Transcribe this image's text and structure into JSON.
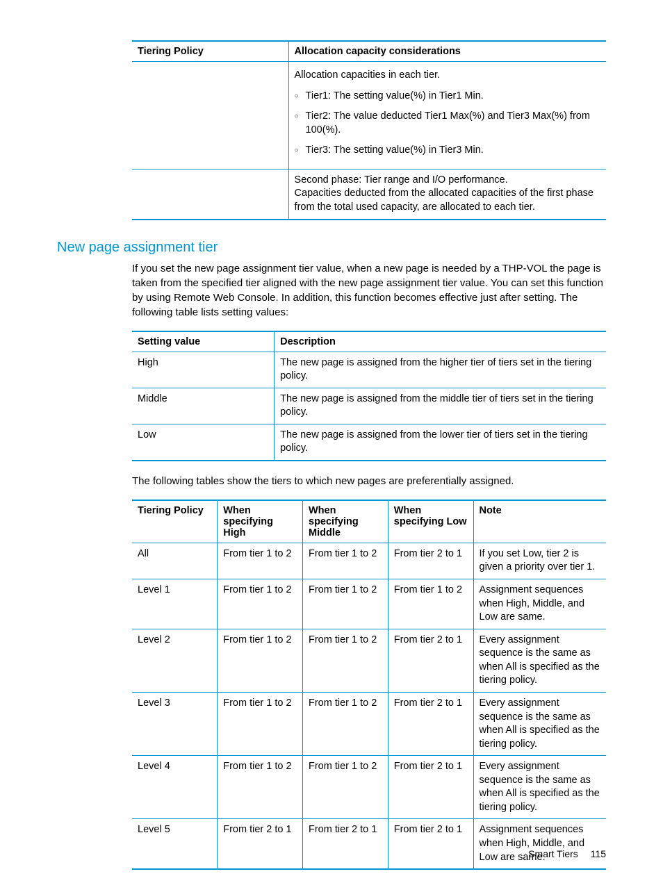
{
  "colors": {
    "accent": "#0096d6",
    "text": "#000000",
    "background": "#ffffff"
  },
  "typography": {
    "body_fontsize_pt": 11,
    "heading_fontsize_pt": 15
  },
  "table1": {
    "columns": [
      "Tiering Policy",
      "Allocation capacity considerations"
    ],
    "row1": {
      "intro": "Allocation capacities in each tier.",
      "items": [
        "Tier1: The setting value(%) in Tier1 Min.",
        "Tier2: The value deducted Tier1 Max(%) and Tier3 Max(%) from 100(%).",
        "Tier3: The setting value(%) in Tier3 Min."
      ]
    },
    "row2": {
      "line1": "Second phase: Tier range and I/O performance.",
      "line2": "Capacities deducted from the allocated capacities of the first phase from the total used capacity, are allocated to each tier."
    }
  },
  "section": {
    "heading": "New page assignment tier",
    "para": "If you set the new page assignment tier value, when a new page is needed by a THP-VOL the page is taken from the specified tier aligned with the new page assignment tier value. You can set this function by using Remote Web Console. In addition, this function becomes effective just after setting. The following table lists setting values:"
  },
  "table2": {
    "columns": [
      "Setting value",
      "Description"
    ],
    "rows": [
      [
        "High",
        "The new page is assigned from the higher tier of tiers set in the tiering policy."
      ],
      [
        "Middle",
        "The new page is assigned from the middle tier of tiers set in the tiering policy."
      ],
      [
        "Low",
        "The new page is assigned from the lower tier of tiers set in the tiering policy."
      ]
    ]
  },
  "midpara": "The following tables show the tiers to which new pages are preferentially assigned.",
  "table3": {
    "columns": [
      "Tiering Policy",
      "When specifying High",
      "When specifying Middle",
      "When specifying Low",
      "Note"
    ],
    "rows": [
      [
        "All",
        "From tier 1 to 2",
        "From tier 1 to 2",
        "From tier 2 to 1",
        "If you set Low, tier 2 is given a priority over tier 1."
      ],
      [
        "Level 1",
        "From tier 1 to 2",
        "From tier 1 to 2",
        "From tier 1 to 2",
        "Assignment sequences when High, Middle, and Low are same."
      ],
      [
        "Level 2",
        "From tier 1 to 2",
        "From tier 1 to 2",
        "From tier 2 to 1",
        "Every assignment sequence is the same as when All is specified as the tiering policy."
      ],
      [
        "Level 3",
        "From tier 1 to 2",
        "From tier 1 to 2",
        "From tier 2 to 1",
        "Every assignment sequence is the same as when All is specified as the tiering policy."
      ],
      [
        "Level 4",
        "From tier 1 to 2",
        "From tier 1 to 2",
        "From tier 2 to 1",
        "Every assignment sequence is the same as when All is specified as the tiering policy."
      ],
      [
        "Level 5",
        "From tier 2 to 1",
        "From tier 2 to 1",
        "From tier 2 to 1",
        "Assignment sequences when High, Middle, and Low are same."
      ]
    ]
  },
  "footer": {
    "title": "Smart Tiers",
    "page": "115"
  }
}
